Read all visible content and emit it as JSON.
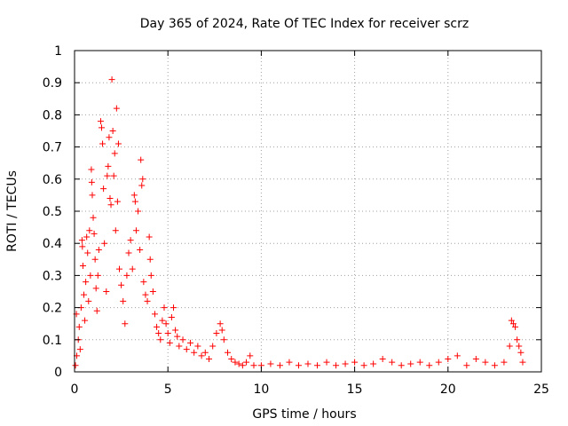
{
  "chart_data": {
    "type": "scatter",
    "title": "Day 365 of 2024, Rate Of TEC Index for receiver scrz",
    "xlabel": "GPS time / hours",
    "ylabel": "ROTI / TECUs",
    "xlim": [
      0,
      25
    ],
    "ylim": [
      0,
      1
    ],
    "x_ticks": [
      0,
      5,
      10,
      15,
      20,
      25
    ],
    "x_tick_labels": [
      "0",
      "5",
      "10",
      "15",
      "20",
      "25"
    ],
    "y_ticks": [
      0,
      0.1,
      0.2,
      0.3,
      0.4,
      0.5,
      0.6,
      0.7,
      0.8,
      0.9,
      1
    ],
    "y_tick_labels": [
      "0",
      "0.1",
      "0.2",
      "0.3",
      "0.4",
      "0.5",
      "0.6",
      "0.7",
      "0.8",
      "0.9",
      "1"
    ],
    "grid": true,
    "marker": "+",
    "color": "#ff0000",
    "series": [
      {
        "name": "ROTI",
        "points": [
          [
            0.05,
            0.02
          ],
          [
            0.1,
            0.18
          ],
          [
            0.12,
            0.05
          ],
          [
            0.2,
            0.1
          ],
          [
            0.25,
            0.14
          ],
          [
            0.3,
            0.07
          ],
          [
            0.35,
            0.2
          ],
          [
            0.4,
            0.41
          ],
          [
            0.42,
            0.39
          ],
          [
            0.45,
            0.33
          ],
          [
            0.5,
            0.24
          ],
          [
            0.55,
            0.16
          ],
          [
            0.6,
            0.28
          ],
          [
            0.65,
            0.42
          ],
          [
            0.7,
            0.37
          ],
          [
            0.75,
            0.22
          ],
          [
            0.8,
            0.44
          ],
          [
            0.85,
            0.3
          ],
          [
            0.9,
            0.63
          ],
          [
            0.92,
            0.59
          ],
          [
            0.95,
            0.55
          ],
          [
            1.0,
            0.48
          ],
          [
            1.05,
            0.43
          ],
          [
            1.1,
            0.35
          ],
          [
            1.15,
            0.26
          ],
          [
            1.2,
            0.19
          ],
          [
            1.25,
            0.3
          ],
          [
            1.3,
            0.38
          ],
          [
            1.4,
            0.78
          ],
          [
            1.45,
            0.76
          ],
          [
            1.5,
            0.71
          ],
          [
            1.55,
            0.57
          ],
          [
            1.6,
            0.4
          ],
          [
            1.7,
            0.25
          ],
          [
            1.75,
            0.61
          ],
          [
            1.8,
            0.64
          ],
          [
            1.85,
            0.73
          ],
          [
            1.9,
            0.54
          ],
          [
            1.95,
            0.52
          ],
          [
            2.0,
            0.91
          ],
          [
            2.05,
            0.75
          ],
          [
            2.1,
            0.61
          ],
          [
            2.15,
            0.68
          ],
          [
            2.2,
            0.44
          ],
          [
            2.25,
            0.82
          ],
          [
            2.3,
            0.53
          ],
          [
            2.35,
            0.71
          ],
          [
            2.4,
            0.32
          ],
          [
            2.5,
            0.27
          ],
          [
            2.6,
            0.22
          ],
          [
            2.7,
            0.15
          ],
          [
            2.8,
            0.3
          ],
          [
            2.9,
            0.37
          ],
          [
            3.0,
            0.41
          ],
          [
            3.1,
            0.32
          ],
          [
            3.2,
            0.55
          ],
          [
            3.25,
            0.53
          ],
          [
            3.3,
            0.44
          ],
          [
            3.4,
            0.5
          ],
          [
            3.5,
            0.38
          ],
          [
            3.55,
            0.66
          ],
          [
            3.6,
            0.58
          ],
          [
            3.65,
            0.6
          ],
          [
            3.7,
            0.28
          ],
          [
            3.8,
            0.24
          ],
          [
            3.9,
            0.22
          ],
          [
            4.0,
            0.42
          ],
          [
            4.05,
            0.35
          ],
          [
            4.1,
            0.3
          ],
          [
            4.2,
            0.25
          ],
          [
            4.3,
            0.18
          ],
          [
            4.4,
            0.14
          ],
          [
            4.5,
            0.12
          ],
          [
            4.6,
            0.1
          ],
          [
            4.7,
            0.16
          ],
          [
            4.8,
            0.2
          ],
          [
            4.9,
            0.15
          ],
          [
            5.0,
            0.12
          ],
          [
            5.1,
            0.09
          ],
          [
            5.2,
            0.17
          ],
          [
            5.3,
            0.2
          ],
          [
            5.4,
            0.13
          ],
          [
            5.5,
            0.11
          ],
          [
            5.6,
            0.08
          ],
          [
            5.8,
            0.1
          ],
          [
            6.0,
            0.07
          ],
          [
            6.2,
            0.09
          ],
          [
            6.4,
            0.06
          ],
          [
            6.6,
            0.08
          ],
          [
            6.8,
            0.05
          ],
          [
            7.0,
            0.06
          ],
          [
            7.2,
            0.04
          ],
          [
            7.4,
            0.08
          ],
          [
            7.6,
            0.12
          ],
          [
            7.8,
            0.15
          ],
          [
            7.9,
            0.13
          ],
          [
            8.0,
            0.1
          ],
          [
            8.2,
            0.06
          ],
          [
            8.4,
            0.04
          ],
          [
            8.6,
            0.03
          ],
          [
            8.8,
            0.025
          ],
          [
            9.0,
            0.02
          ],
          [
            9.2,
            0.03
          ],
          [
            9.4,
            0.05
          ],
          [
            9.6,
            0.02
          ],
          [
            10.0,
            0.02
          ],
          [
            10.5,
            0.025
          ],
          [
            11.0,
            0.02
          ],
          [
            11.5,
            0.03
          ],
          [
            12.0,
            0.02
          ],
          [
            12.5,
            0.025
          ],
          [
            13.0,
            0.02
          ],
          [
            13.5,
            0.03
          ],
          [
            14.0,
            0.02
          ],
          [
            14.5,
            0.025
          ],
          [
            15.0,
            0.03
          ],
          [
            15.5,
            0.02
          ],
          [
            16.0,
            0.025
          ],
          [
            16.5,
            0.04
          ],
          [
            17.0,
            0.03
          ],
          [
            17.5,
            0.02
          ],
          [
            18.0,
            0.025
          ],
          [
            18.5,
            0.03
          ],
          [
            19.0,
            0.02
          ],
          [
            19.5,
            0.03
          ],
          [
            20.0,
            0.04
          ],
          [
            20.5,
            0.05
          ],
          [
            21.0,
            0.02
          ],
          [
            21.5,
            0.04
          ],
          [
            22.0,
            0.03
          ],
          [
            22.5,
            0.02
          ],
          [
            23.0,
            0.03
          ],
          [
            23.3,
            0.08
          ],
          [
            23.4,
            0.16
          ],
          [
            23.5,
            0.15
          ],
          [
            23.6,
            0.14
          ],
          [
            23.7,
            0.1
          ],
          [
            23.8,
            0.08
          ],
          [
            23.9,
            0.06
          ],
          [
            24.0,
            0.03
          ]
        ]
      }
    ]
  }
}
